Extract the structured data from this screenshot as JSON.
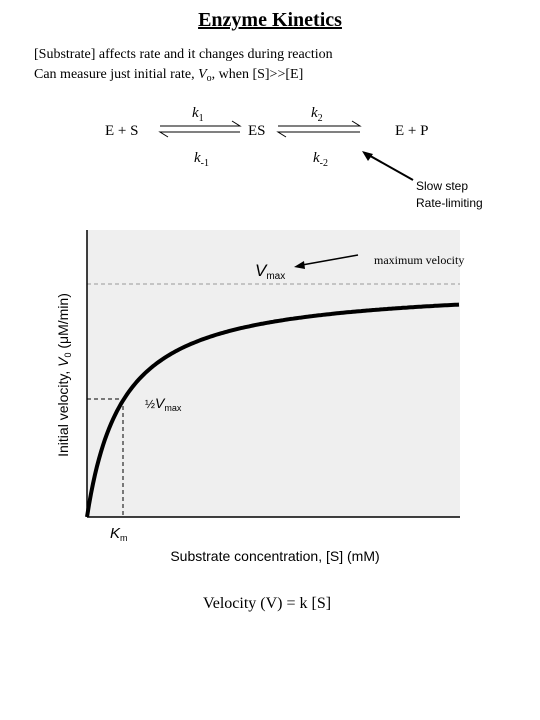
{
  "title": "Enzyme Kinetics",
  "intro": {
    "line1": "[Substrate] affects rate and it changes during reaction",
    "line2": {
      "before": "Can measure just initial rate, ",
      "symbol": "V",
      "subscript": "o",
      "after": ", when [S]>>[E]"
    }
  },
  "reaction": {
    "reactants": "E + S",
    "intermediate": "ES",
    "products": "E + P",
    "k1": {
      "base": "k",
      "sub": "1"
    },
    "k_minus1": {
      "base": "k",
      "sub": "-1"
    },
    "k2": {
      "base": "k",
      "sub": "2"
    },
    "k_minus2": {
      "base": "k",
      "sub": "-2"
    }
  },
  "note": {
    "line1": "Slow step",
    "line2": "Rate-limiting"
  },
  "graph": {
    "annotation": "maximum velocity",
    "vmax": {
      "base": "V",
      "sub": "max"
    },
    "half_vmax": {
      "fraction": "½",
      "base": "V",
      "sub": "max"
    },
    "km": {
      "base": "K",
      "sub": "m"
    },
    "y_label": {
      "before": "Initial velocity, ",
      "base": "V",
      "sub": "0",
      "after": " (μM/min)"
    },
    "x_label": "Substrate concentration, [S] (mM)"
  },
  "equation": "Velocity (V)  = k [S]"
}
